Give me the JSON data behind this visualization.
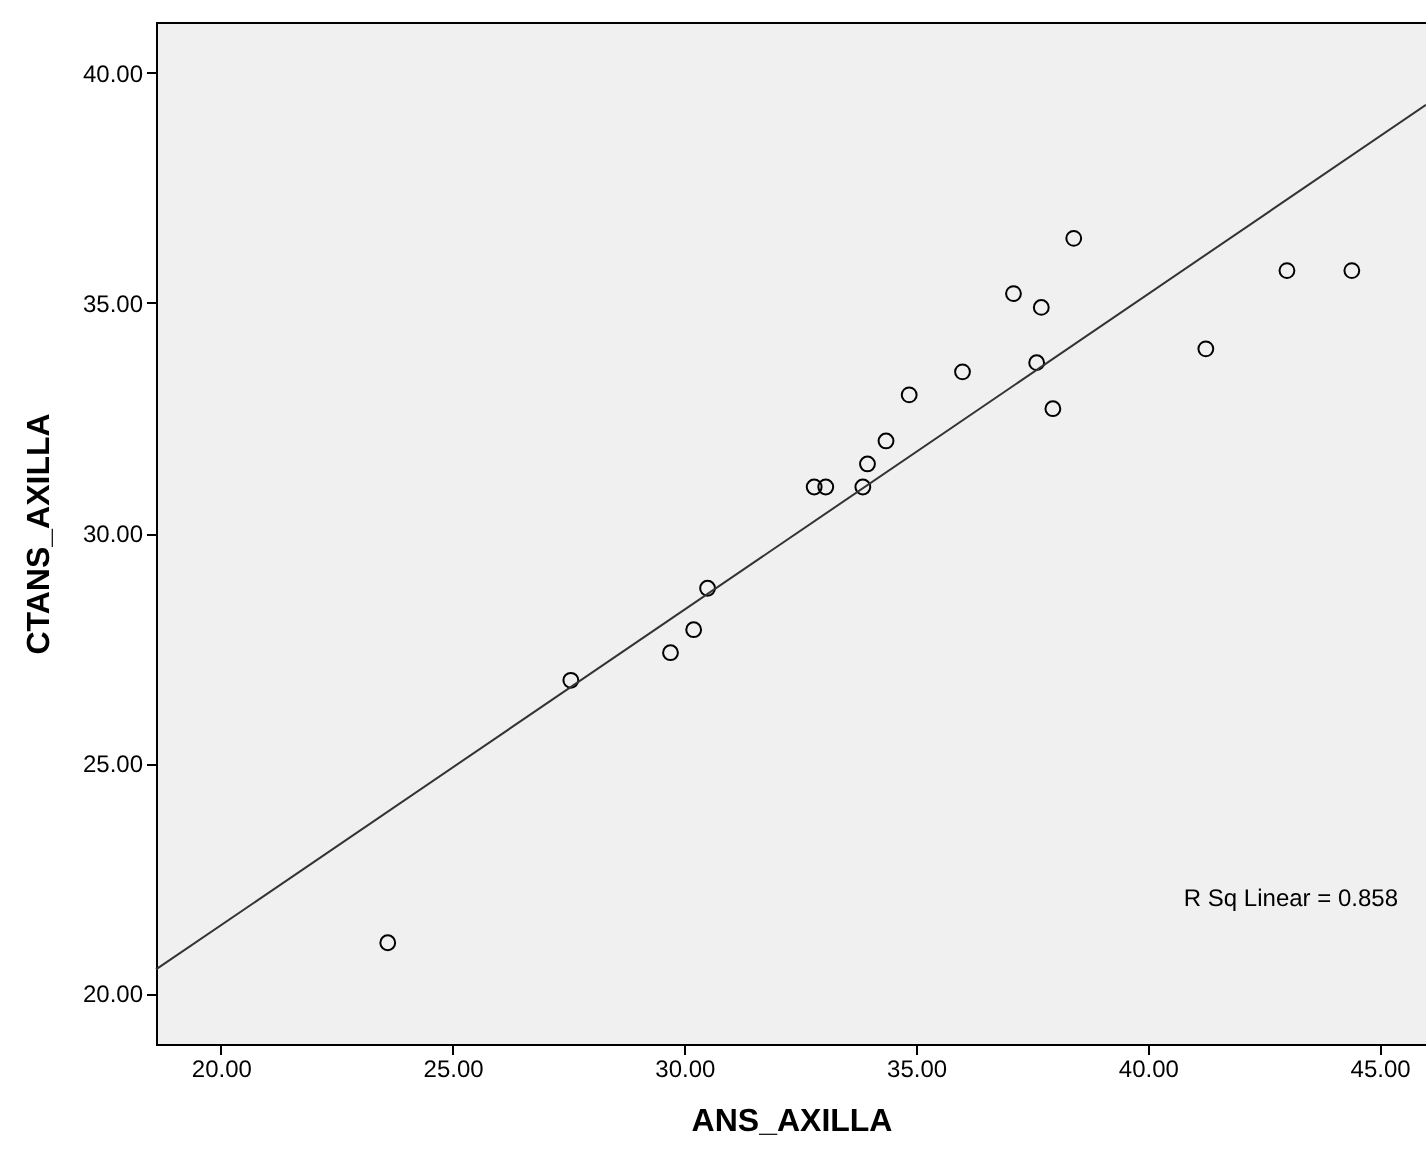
{
  "chart_data": {
    "type": "scatter",
    "xlabel": "ANS_AXILLA",
    "ylabel": "CTANS_AXILLA",
    "xlim": [
      18.6,
      46
    ],
    "ylim": [
      18.9,
      41.1
    ],
    "xticks": [
      {
        "value": 20,
        "label": "20.00"
      },
      {
        "value": 25,
        "label": "25.00"
      },
      {
        "value": 30,
        "label": "30.00"
      },
      {
        "value": 35,
        "label": "35.00"
      },
      {
        "value": 40,
        "label": "40.00"
      },
      {
        "value": 45,
        "label": "45.00"
      }
    ],
    "yticks": [
      {
        "value": 20,
        "label": "20.00"
      },
      {
        "value": 25,
        "label": "25.00"
      },
      {
        "value": 30,
        "label": "30.00"
      },
      {
        "value": 35,
        "label": "35.00"
      },
      {
        "value": 40,
        "label": "40.00"
      }
    ],
    "grid": false,
    "series": [
      {
        "marker": "circle",
        "color": "#000000",
        "x": [
          23.6,
          27.55,
          29.7,
          30.2,
          30.5,
          32.8,
          33.05,
          33.85,
          33.95,
          34.35,
          34.85,
          36.0,
          37.1,
          37.6,
          37.7,
          37.95,
          38.4,
          41.25,
          43.0,
          44.4
        ],
        "values": [
          21.1,
          26.8,
          27.4,
          27.9,
          28.8,
          31.0,
          31.0,
          31.0,
          31.5,
          32.0,
          33.0,
          33.5,
          35.2,
          33.7,
          34.9,
          32.7,
          36.4,
          34.0,
          35.7,
          35.7
        ]
      },
      {
        "type": "line",
        "color": "#333333",
        "x": [
          18.6,
          46
        ],
        "values": [
          20.52,
          39.3
        ]
      }
    ],
    "annotations": [
      "R Sq Linear = 0.858"
    ]
  }
}
